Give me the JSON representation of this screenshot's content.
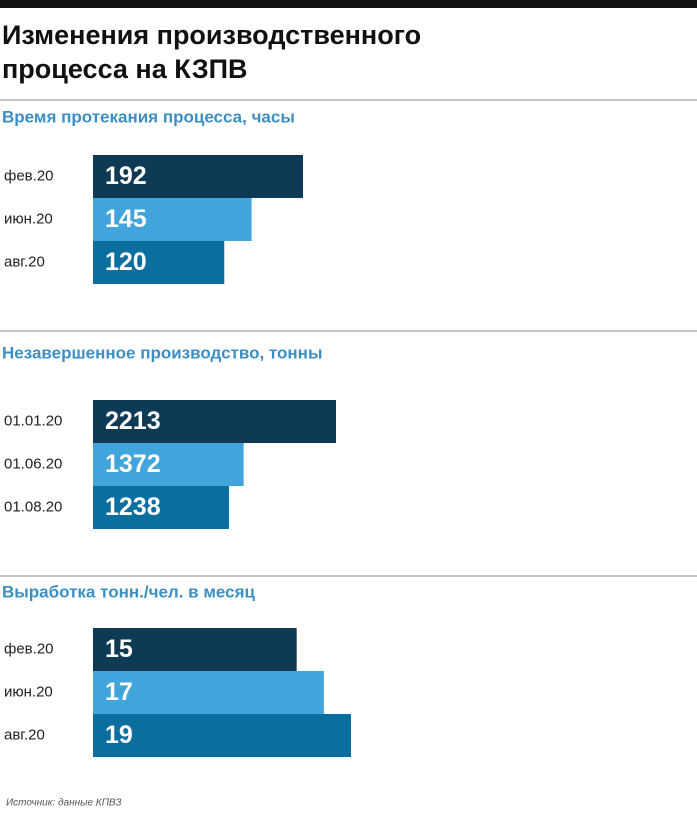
{
  "title": [
    "Изменения производственного",
    "процесса на КЗПВ"
  ],
  "source": "Источник: данные КПВЗ",
  "chart_data": [
    {
      "type": "bar",
      "title": "Время протекания процесса, часы",
      "categories": [
        "фев.20",
        "июн.20",
        "авг.20"
      ],
      "values": [
        192,
        145,
        120
      ],
      "colors": [
        "#0f3a55",
        "#41a4da",
        "#0b6e9f"
      ]
    },
    {
      "type": "bar",
      "title": "Незавершенное производство, тонны",
      "categories": [
        "01.01.20",
        "01.06.20",
        "01.08.20"
      ],
      "values": [
        2213,
        1372,
        1238
      ],
      "colors": [
        "#0f3a55",
        "#41a4da",
        "#0b6e9f"
      ]
    },
    {
      "type": "bar",
      "title": "Выработка тонн./чел. в месяц",
      "categories": [
        "фев.20",
        "июн.20",
        "авг.20"
      ],
      "values": [
        15,
        17,
        19
      ],
      "colors": [
        "#0f3a55",
        "#41a4da",
        "#0b6e9f"
      ]
    }
  ]
}
